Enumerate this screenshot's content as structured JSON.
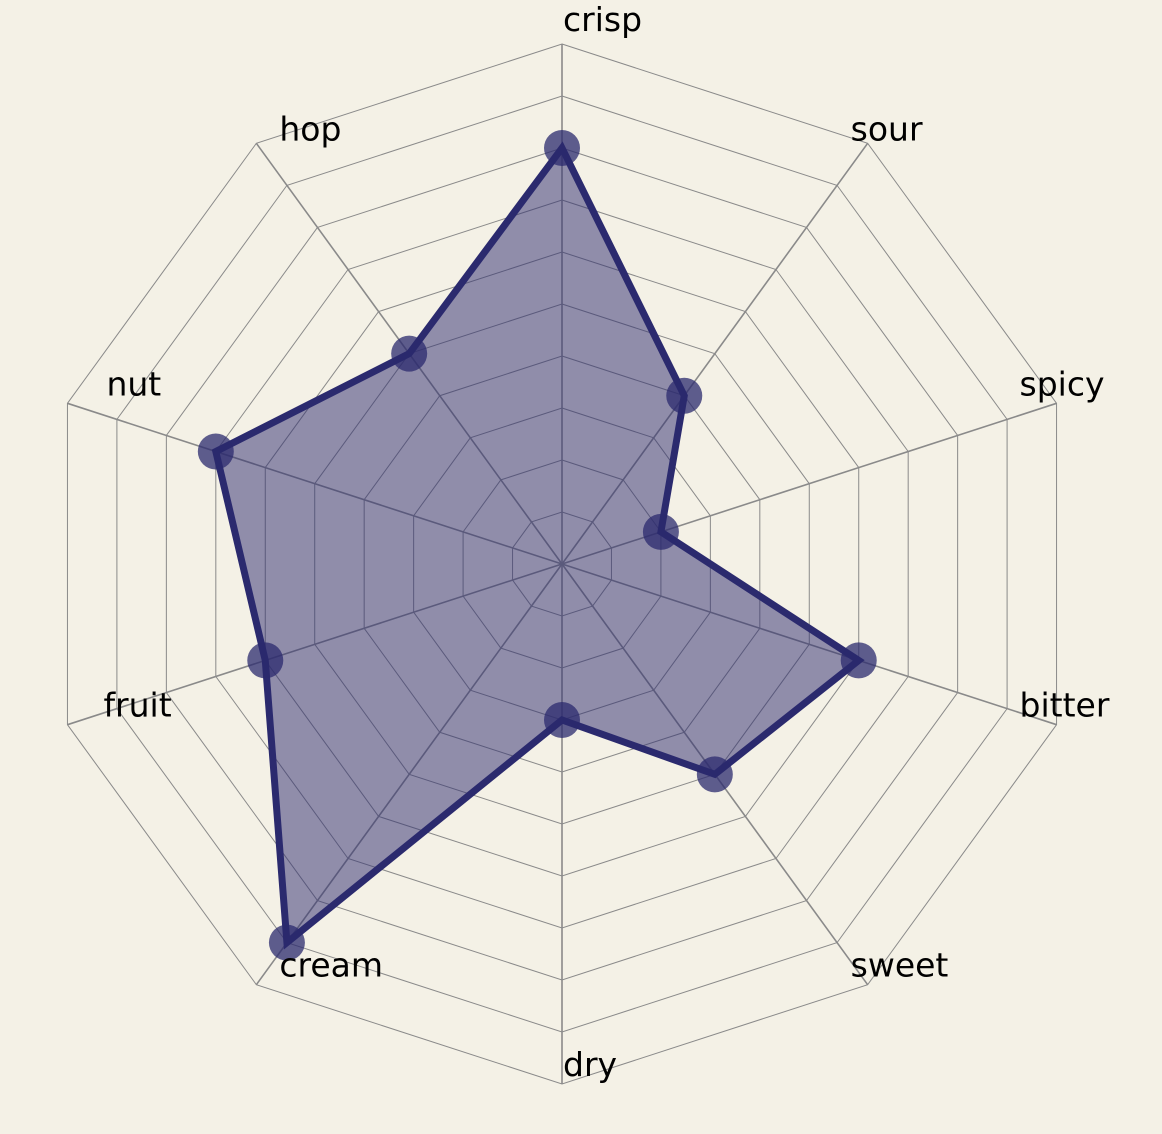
{
  "chart_data": {
    "type": "radar",
    "title": "",
    "axes": [
      "crisp",
      "sour",
      "spicy",
      "bitter",
      "sweet",
      "dry",
      "cream",
      "fruit",
      "nut",
      "hop"
    ],
    "range": [
      0,
      10
    ],
    "rings": 10,
    "grid": true,
    "series": [
      {
        "values": [
          8,
          4,
          2,
          6,
          5,
          3,
          9,
          6,
          7,
          5
        ]
      }
    ],
    "colors": {
      "background": "#f4f1e6",
      "grid": "#8a8a8a",
      "fill": "#2b2a6e",
      "stroke": "#2b2a6e",
      "point": "#2b2a6e"
    }
  }
}
